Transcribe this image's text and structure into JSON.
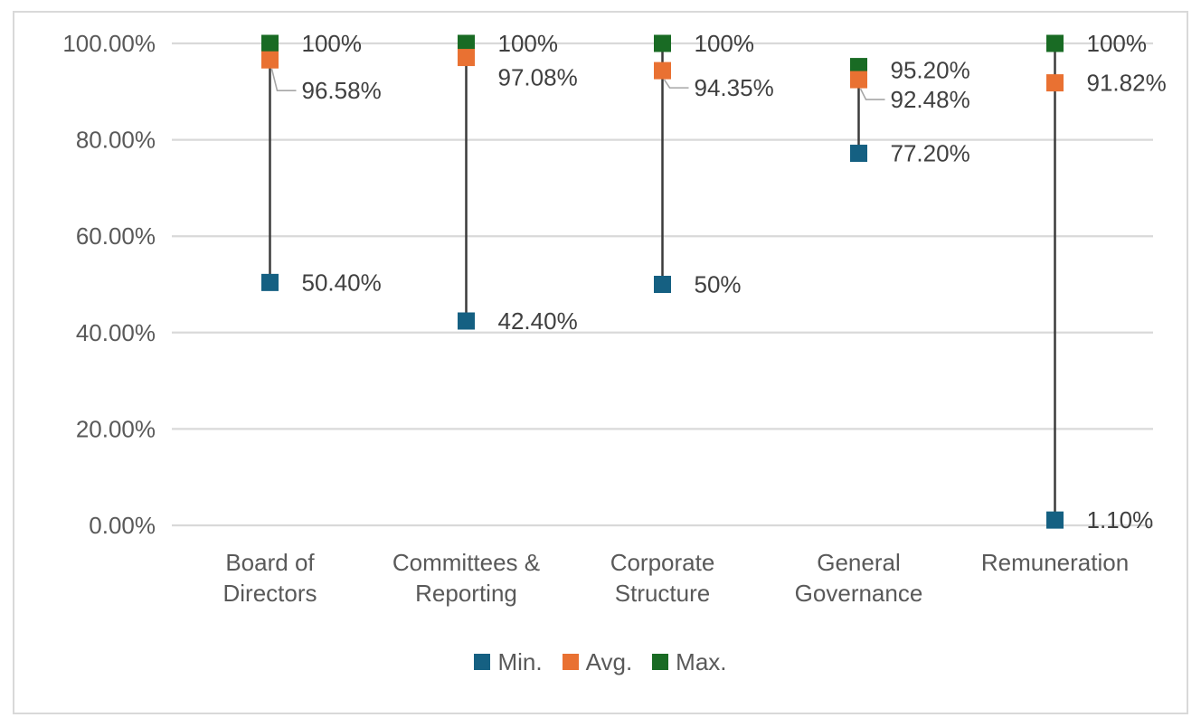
{
  "chart_data": {
    "type": "scatter",
    "subtype": "high-low-lines",
    "title": "",
    "categories": [
      "Board of Directors",
      "Committees & Reporting",
      "Corporate Structure",
      "General Governance",
      "Remuneration"
    ],
    "category_label_lines": [
      [
        "Board of",
        "Directors"
      ],
      [
        "Committees &",
        "Reporting"
      ],
      [
        "Corporate",
        "Structure"
      ],
      [
        "General",
        "Governance"
      ],
      [
        "Remuneration"
      ]
    ],
    "series": [
      {
        "name": "Min.",
        "color": "#156082",
        "values": [
          50.4,
          42.4,
          50,
          77.2,
          1.1
        ],
        "labels": [
          "50.40%",
          "42.40%",
          "50%",
          "77.20%",
          "1.10%"
        ]
      },
      {
        "name": "Avg.",
        "color": "#E97132",
        "values": [
          96.58,
          97.08,
          94.35,
          92.48,
          91.82
        ],
        "labels": [
          "96.58%",
          "97.08%",
          "94.35%",
          "92.48%",
          "91.82%"
        ]
      },
      {
        "name": "Max.",
        "color": "#196B24",
        "values": [
          100,
          100,
          100,
          95.2,
          100
        ],
        "labels": [
          "100%",
          "100%",
          "100%",
          "95.20%",
          "100%"
        ]
      }
    ],
    "y_axis": {
      "min": 0,
      "max": 100,
      "tick_step": 20,
      "tick_labels_bottom_to_top": [
        "0.00%",
        "20.00%",
        "40.00%",
        "60.00%",
        "80.00%",
        "100.00%"
      ]
    },
    "x_axis_label": "",
    "y_axis_label": "",
    "grid": true,
    "legend_position": "bottom",
    "legend": [
      "Min.",
      "Avg.",
      "Max."
    ],
    "label_adjustments": [
      {
        "series": 1,
        "category": 0,
        "dy": 34,
        "leader": true
      },
      {
        "series": 1,
        "category": 1,
        "dy": 22,
        "leader": false
      },
      {
        "series": 1,
        "category": 2,
        "dy": 19,
        "leader": true
      },
      {
        "series": 1,
        "category": 3,
        "dy": 22,
        "leader": true
      },
      {
        "series": 2,
        "category": 3,
        "dy": 4,
        "leader": false
      }
    ],
    "colors": {
      "background": "#FFFFFF",
      "frame_border": "#D9D9D9",
      "gridline": "#D9D9D9",
      "axis_text": "#595959",
      "data_label_text": "#404040",
      "hilo_line": "#3B3B3B",
      "leader_line": "#A6A6A6"
    }
  }
}
